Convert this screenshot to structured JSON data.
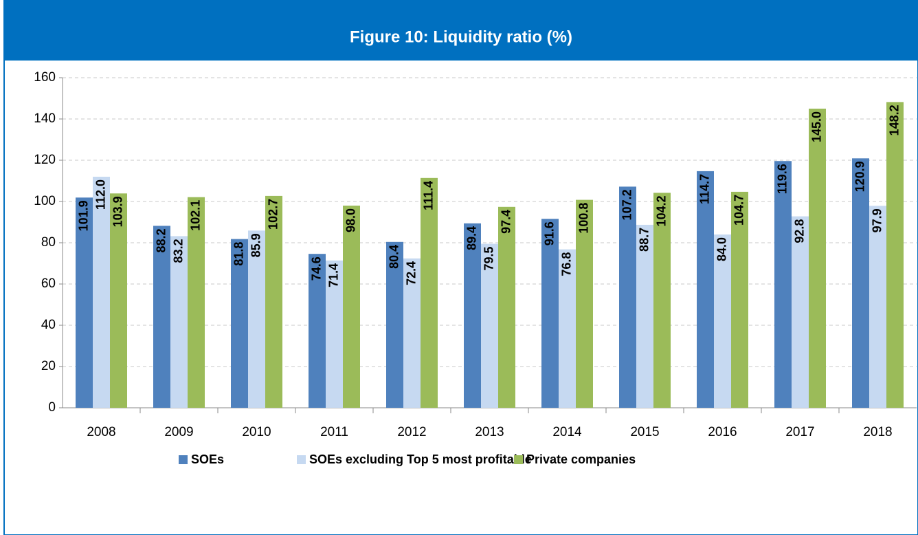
{
  "chart_data": {
    "type": "bar",
    "title": "Figure 10: Liquidity ratio (%)",
    "categories": [
      "2008",
      "2009",
      "2010",
      "2011",
      "2012",
      "2013",
      "2014",
      "2015",
      "2016",
      "2017",
      "2018"
    ],
    "series": [
      {
        "name": "SOEs",
        "color": "#4f81bd",
        "values": [
          101.9,
          88.2,
          81.8,
          74.6,
          80.4,
          89.4,
          91.6,
          107.2,
          114.7,
          119.6,
          120.9
        ],
        "value_labels": [
          "101.9",
          "88.2",
          "81.8",
          "74.6",
          "80.4",
          "89.4",
          "91.6",
          "107.2",
          "114.7",
          "119.6",
          "120.9"
        ]
      },
      {
        "name": "SOEs excluding Top 5 most profitable",
        "color": "#c6d9f1",
        "values": [
          112,
          83.2,
          85.9,
          71.4,
          72.4,
          79.5,
          76.8,
          88.7,
          84,
          92.8,
          97.9
        ],
        "value_labels": [
          "112.0",
          "83.2",
          "85.9",
          "71.4",
          "72.4",
          "79.5",
          "76.8",
          "88.7",
          "84.0",
          "92.8",
          "97.9"
        ]
      },
      {
        "name": "Private companies",
        "color": "#9bbb59",
        "values": [
          103.9,
          102.1,
          102.7,
          98,
          111.4,
          97.4,
          100.8,
          104.2,
          104.7,
          145,
          148.2
        ],
        "value_labels": [
          "103.9",
          "102.1",
          "102.7",
          "98.0",
          "111.4",
          "97.4",
          "100.8",
          "104.2",
          "104.7",
          "145.0",
          "148.2"
        ]
      }
    ],
    "ylim": [
      0,
      160
    ],
    "yticks": [
      0,
      20,
      40,
      60,
      80,
      100,
      120,
      140,
      160
    ],
    "grid": true,
    "legend": "bottom"
  }
}
